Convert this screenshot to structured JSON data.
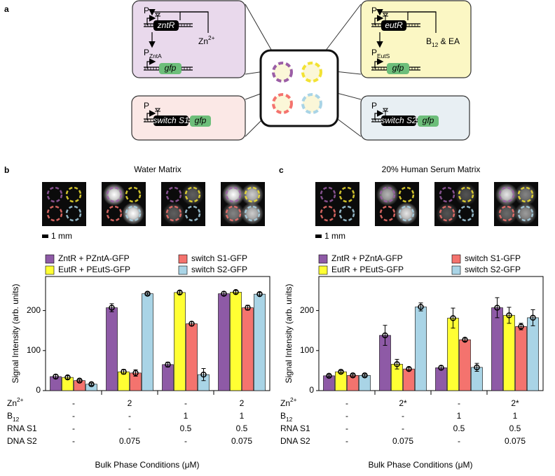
{
  "panel_labels": [
    "a",
    "b",
    "c"
  ],
  "diagram": {
    "modules": [
      {
        "promoter": {
          "text": "P"
        },
        "gene": "zntR",
        "inducer": {
          "text": "Zn",
          "sup": "2+"
        },
        "output_promoter": {
          "text": "P",
          "sub": "ZntA"
        },
        "reporter": "gfp"
      },
      {
        "promoter": {
          "text": "P"
        },
        "gene": "eutR",
        "inducer": {
          "text": "B",
          "sub": "12",
          "after": " & EA"
        },
        "output_promoter": {
          "text": "P",
          "sub": "EutS"
        },
        "reporter": "gfp"
      },
      {
        "promoter": {
          "text": "P"
        },
        "gene": "switch S1",
        "reporter": "gfp"
      },
      {
        "promoter": {
          "text": "P"
        },
        "gene": "switch S2",
        "reporter": "gfp"
      }
    ]
  },
  "chart_data": [
    {
      "type": "bar",
      "title": "Water Matrix",
      "scale_bar": "1 mm",
      "categories": [
        null,
        null,
        null,
        null
      ],
      "series": [
        {
          "name": "ZntR + PZntA-GFP",
          "color": "#8e5aa6",
          "values": [
            35,
            207,
            65,
            242
          ],
          "errors": [
            5,
            10,
            6,
            5
          ]
        },
        {
          "name": "EutR + PEutS-GFP",
          "color": "#ffff33",
          "values": [
            33,
            47,
            245,
            246
          ],
          "errors": [
            4,
            6,
            4,
            4
          ]
        },
        {
          "name": "switch S1-GFP",
          "color": "#f4736e",
          "values": [
            25,
            44,
            167,
            207
          ],
          "errors": [
            3,
            8,
            5,
            6
          ]
        },
        {
          "name": "switch S2-GFP",
          "color": "#a9d4e6",
          "values": [
            16,
            242,
            40,
            241
          ],
          "errors": [
            3,
            3,
            15,
            4
          ]
        }
      ],
      "ylim": [
        0,
        285
      ],
      "yticks": [
        0,
        100,
        200
      ],
      "ylabel": "Signal Intensity (arb. units)",
      "xlabel": "Bulk Phase Conditions (μM)",
      "conditions": [
        {
          "label": {
            "text": "Zn",
            "sup": "2+"
          },
          "values": [
            "-",
            "2",
            "-",
            "2"
          ]
        },
        {
          "label": {
            "text": "B",
            "sub": "12"
          },
          "values": [
            "-",
            "-",
            "1",
            "1"
          ]
        },
        {
          "label": {
            "text": "RNA S1"
          },
          "values": [
            "-",
            "-",
            "0.5",
            "0.5"
          ]
        },
        {
          "label": {
            "text": "DNA S2"
          },
          "values": [
            "-",
            "0.075",
            "-",
            "0.075"
          ]
        }
      ]
    },
    {
      "type": "bar",
      "title": "20% Human Serum Matrix",
      "scale_bar": "1 mm",
      "categories": [
        null,
        null,
        null,
        null
      ],
      "series": [
        {
          "name": "ZntR + PZntA-GFP",
          "color": "#8e5aa6",
          "values": [
            37,
            138,
            57,
            207
          ],
          "errors": [
            3,
            25,
            5,
            25
          ]
        },
        {
          "name": "EutR + PEutS-GFP",
          "color": "#ffff33",
          "values": [
            47,
            66,
            181,
            188
          ],
          "errors": [
            3,
            12,
            25,
            20
          ]
        },
        {
          "name": "switch S1-GFP",
          "color": "#f4736e",
          "values": [
            38,
            54,
            127,
            160
          ],
          "errors": [
            3,
            4,
            4,
            8
          ]
        },
        {
          "name": "switch S2-GFP",
          "color": "#a9d4e6",
          "values": [
            38,
            209,
            58,
            182
          ],
          "errors": [
            3,
            10,
            10,
            20
          ]
        }
      ],
      "ylim": [
        0,
        285
      ],
      "yticks": [
        0,
        100,
        200
      ],
      "ylabel": "Signal Intensity (arb. units)",
      "xlabel": "Bulk Phase Conditions (μM)",
      "conditions": [
        {
          "label": {
            "text": "Zn",
            "sup": "2+"
          },
          "values": [
            "-",
            "2*",
            "-",
            "2*"
          ]
        },
        {
          "label": {
            "text": "B",
            "sub": "12"
          },
          "values": [
            "-",
            "-",
            "1",
            "1"
          ]
        },
        {
          "label": {
            "text": "RNA S1"
          },
          "values": [
            "-",
            "-",
            "0.5",
            "0.5"
          ]
        },
        {
          "label": {
            "text": "DNA S2"
          },
          "values": [
            "-",
            "0.075",
            "-",
            "0.075"
          ]
        }
      ]
    }
  ]
}
